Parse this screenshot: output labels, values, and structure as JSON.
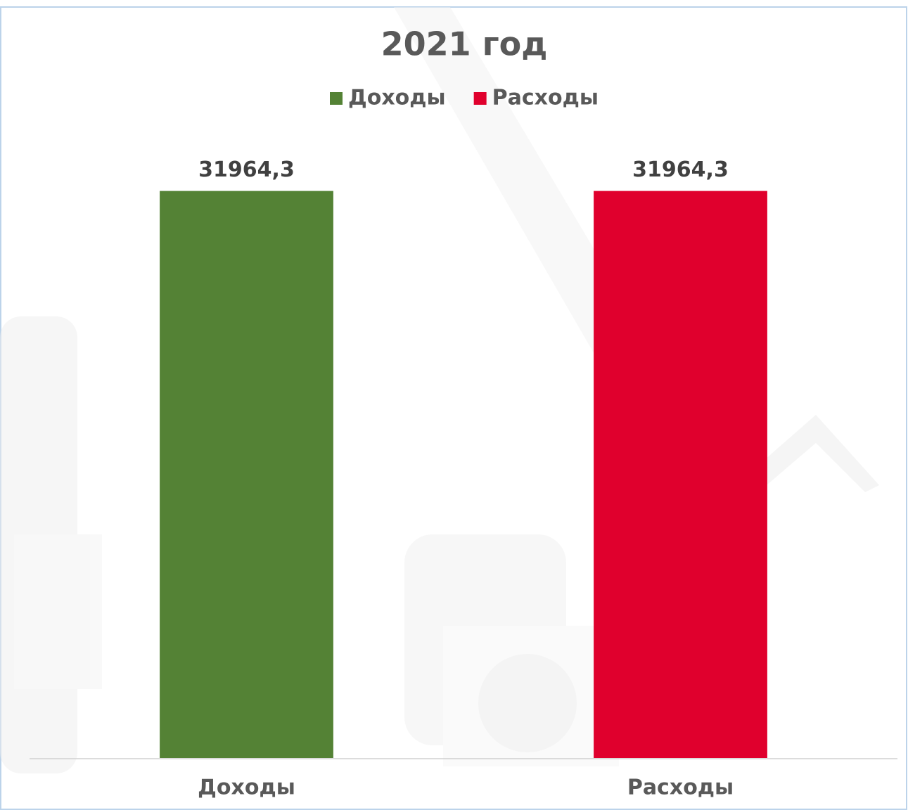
{
  "chart_data": {
    "type": "bar",
    "title": "2021 год",
    "categories": [
      "Доходы",
      "Расходы"
    ],
    "series": [
      {
        "name": "Доходы",
        "color": "#548235",
        "values": [
          31964.3,
          null
        ],
        "value_labels": [
          "31964,3",
          null
        ]
      },
      {
        "name": "Расходы",
        "color": "#e0002d",
        "values": [
          null,
          31964.3
        ],
        "value_labels": [
          null,
          "31964,3"
        ]
      }
    ],
    "ylim": [
      0,
      35000
    ],
    "legend": "top"
  }
}
